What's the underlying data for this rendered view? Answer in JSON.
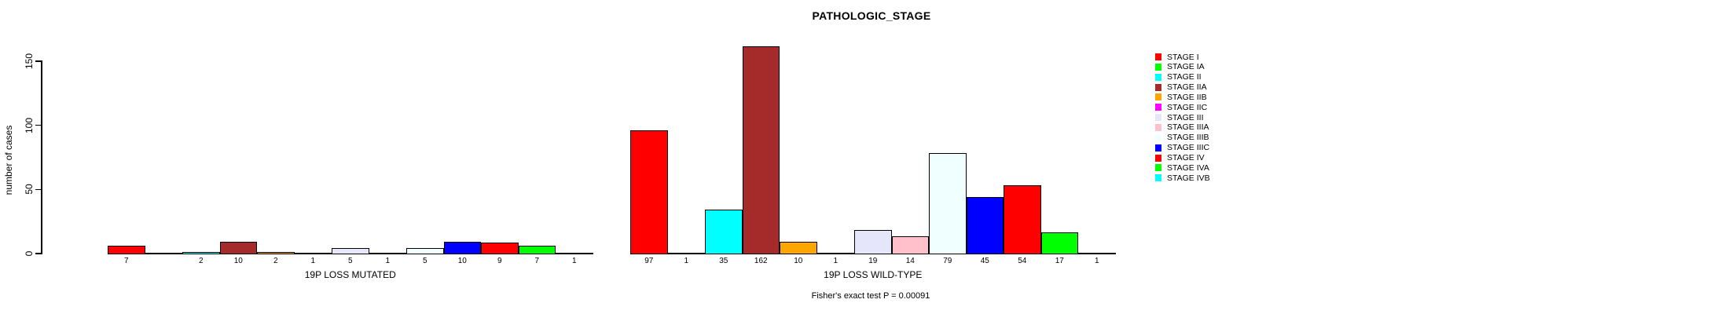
{
  "title": "PATHOLOGIC_STAGE",
  "y_axis": {
    "label": "number of cases",
    "tick_labels": [
      "0",
      "50",
      "100",
      "150"
    ]
  },
  "footer": "Fisher's exact test P = 0.00091",
  "legend": [
    {
      "label": "STAGE I",
      "color": "#FF0000"
    },
    {
      "label": "STAGE IA",
      "color": "#00FF00"
    },
    {
      "label": "STAGE II",
      "color": "#00FFFF"
    },
    {
      "label": "STAGE IIA",
      "color": "#A52A2A"
    },
    {
      "label": "STAGE IIB",
      "color": "#FFA500"
    },
    {
      "label": "STAGE IIC",
      "color": "#FF00FF"
    },
    {
      "label": "STAGE III",
      "color": "#E6E6FA"
    },
    {
      "label": "STAGE IIIA",
      "color": "#FFC0CB"
    },
    {
      "label": "STAGE IIIB",
      "color": "#F0FFFF"
    },
    {
      "label": "STAGE IIIC",
      "color": "#0000FF"
    },
    {
      "label": "STAGE IV",
      "color": "#FF0000"
    },
    {
      "label": "STAGE IVA",
      "color": "#00FF00"
    },
    {
      "label": "STAGE IVB",
      "color": "#00FFFF"
    }
  ],
  "chart_data": {
    "type": "bar",
    "title": "PATHOLOGIC_STAGE",
    "ylabel": "number of cases",
    "ylim": [
      0,
      150
    ],
    "y_ticks": [
      0,
      50,
      100,
      150
    ],
    "grid": false,
    "legend_position": "right",
    "bar_value_labels_shown": true,
    "annotation": "Fisher's exact test P = 0.00091",
    "categories": [
      "STAGE I",
      "STAGE IA",
      "STAGE II",
      "STAGE IIA",
      "STAGE IIB",
      "STAGE IIC",
      "STAGE III",
      "STAGE IIIA",
      "STAGE IIIB",
      "STAGE IIIC",
      "STAGE IV",
      "STAGE IVA",
      "STAGE IVB"
    ],
    "colors": [
      "#FF0000",
      "#00FF00",
      "#00FFFF",
      "#A52A2A",
      "#FFA500",
      "#FF00FF",
      "#E6E6FA",
      "#FFC0CB",
      "#F0FFFF",
      "#0000FF",
      "#FF0000",
      "#00FF00",
      "#00FFFF"
    ],
    "series": [
      {
        "name": "19P LOSS MUTATED",
        "values": [
          7,
          null,
          2,
          10,
          2,
          1,
          5,
          1,
          5,
          10,
          9,
          7,
          1
        ]
      },
      {
        "name": "19P LOSS WILD-TYPE",
        "values": [
          97,
          1,
          35,
          162,
          10,
          1,
          19,
          14,
          79,
          45,
          54,
          17,
          1
        ]
      }
    ]
  }
}
